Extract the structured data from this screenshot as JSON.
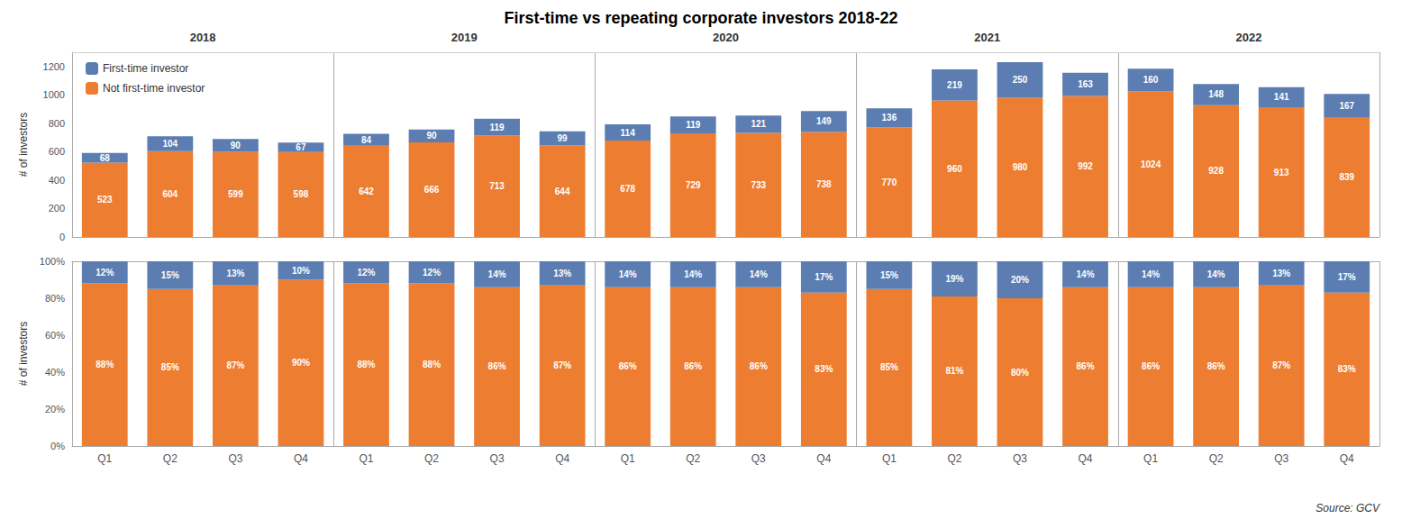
{
  "chart_data": [
    {
      "type": "bar",
      "title": "First-time vs repeating corporate investors 2018-22",
      "categories": [
        "Q1",
        "Q2",
        "Q3",
        "Q4",
        "Q1",
        "Q2",
        "Q3",
        "Q4",
        "Q1",
        "Q2",
        "Q3",
        "Q4",
        "Q1",
        "Q2",
        "Q3",
        "Q4",
        "Q1",
        "Q2",
        "Q3",
        "Q4"
      ],
      "series": [
        {
          "name": "Not first-time investor",
          "color": "#ED7D31",
          "values": [
            523,
            604,
            599,
            598,
            642,
            666,
            713,
            644,
            678,
            729,
            733,
            738,
            770,
            960,
            980,
            992,
            1024,
            928,
            913,
            839
          ]
        },
        {
          "name": "First-time investor",
          "color": "#5B7DB1",
          "values": [
            68,
            104,
            90,
            67,
            84,
            90,
            119,
            99,
            114,
            119,
            121,
            149,
            136,
            219,
            250,
            163,
            160,
            148,
            141,
            167
          ]
        }
      ],
      "stacked": true,
      "data_labels": true,
      "y_label": "# of investors",
      "ylim": [
        0,
        1300
      ],
      "yticks": [
        0,
        200,
        400,
        600,
        800,
        1000,
        1200
      ],
      "grid": false,
      "legend": "upper left",
      "tick_labels": "y",
      "annotations": [
        "2018",
        "2019",
        "2020",
        "2021",
        "2022"
      ]
    },
    {
      "type": "bar",
      "categories": [
        "Q1",
        "Q2",
        "Q3",
        "Q4",
        "Q1",
        "Q2",
        "Q3",
        "Q4",
        "Q1",
        "Q2",
        "Q3",
        "Q4",
        "Q1",
        "Q2",
        "Q3",
        "Q4",
        "Q1",
        "Q2",
        "Q3",
        "Q4"
      ],
      "series": [
        {
          "name": "Not first-time investor",
          "color": "#ED7D31",
          "values": [
            88,
            85,
            87,
            90,
            88,
            88,
            86,
            87,
            86,
            86,
            86,
            83,
            85,
            81,
            80,
            86,
            86,
            86,
            87,
            83
          ],
          "value_labels": [
            "88%",
            "85%",
            "87%",
            "90%",
            "88%",
            "88%",
            "86%",
            "87%",
            "86%",
            "86%",
            "86%",
            "83%",
            "85%",
            "81%",
            "80%",
            "86%",
            "86%",
            "86%",
            "87%",
            "83%"
          ]
        },
        {
          "name": "First-time investor",
          "color": "#5B7DB1",
          "values": [
            12,
            15,
            13,
            10,
            12,
            12,
            14,
            13,
            14,
            14,
            14,
            17,
            15,
            19,
            20,
            14,
            14,
            14,
            13,
            17
          ],
          "value_labels": [
            "12%",
            "15%",
            "13%",
            "10%",
            "12%",
            "12%",
            "14%",
            "13%",
            "14%",
            "14%",
            "14%",
            "17%",
            "15%",
            "19%",
            "20%",
            "14%",
            "14%",
            "14%",
            "13%",
            "17%"
          ]
        }
      ],
      "stacked": true,
      "data_labels": true,
      "y_label": "# of investors",
      "ylim": [
        0,
        100
      ],
      "yticks": [
        {
          "value": 0,
          "label": "0%"
        },
        {
          "value": 20,
          "label": "20%"
        },
        {
          "value": 40,
          "label": "40%"
        },
        {
          "value": 60,
          "label": "60%"
        },
        {
          "value": 80,
          "label": "80%"
        },
        {
          "value": 100,
          "label": "100%"
        }
      ],
      "grid": false,
      "annotations": [
        "Source: GCV"
      ]
    }
  ]
}
